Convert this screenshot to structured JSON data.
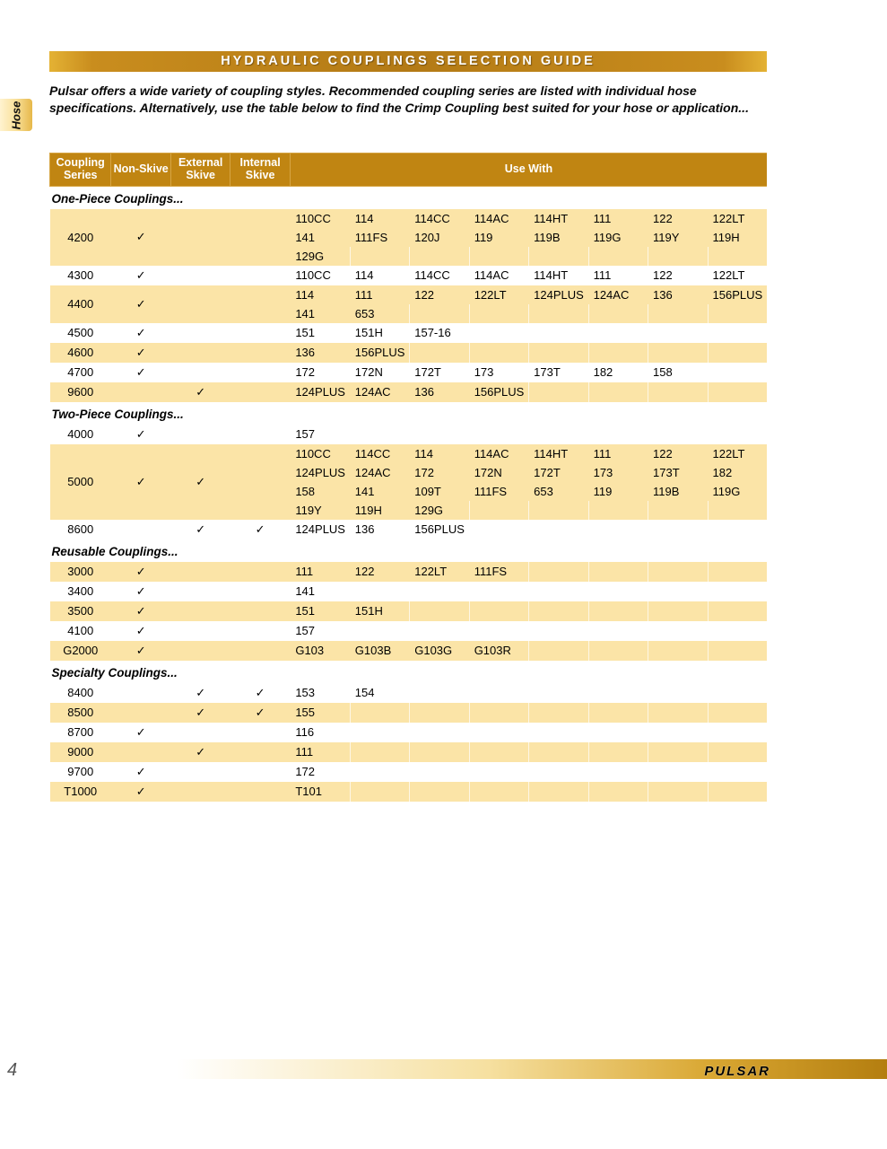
{
  "sideTab": "Hose",
  "title": "HYDRAULIC COUPLINGS SELECTION GUIDE",
  "intro": "Pulsar offers a wide variety of coupling styles. Recommended coupling series are listed with individual hose specifications. Alternatively, use the table below to find the Crimp Coupling best suited for your hose or application...",
  "columns": {
    "series": "Coupling Series",
    "nonSkive": "Non-Skive",
    "extSkive": "External Skive",
    "intSkive": "Internal Skive",
    "useWith": "Use With"
  },
  "checkGlyph": "✓",
  "useWithCols": 8,
  "sections": [
    {
      "label": "One-Piece Couplings...",
      "rows": [
        {
          "series": "4200",
          "non": true,
          "ext": false,
          "int": false,
          "use": [
            "110CC",
            "114",
            "114CC",
            "114AC",
            "114HT",
            "111",
            "122",
            "122LT",
            "141",
            "111FS",
            "120J",
            "119",
            "119B",
            "119G",
            "119Y",
            "119H",
            "129G"
          ]
        },
        {
          "series": "4300",
          "non": true,
          "ext": false,
          "int": false,
          "use": [
            "110CC",
            "114",
            "114CC",
            "114AC",
            "114HT",
            "111",
            "122",
            "122LT"
          ]
        },
        {
          "series": "4400",
          "non": true,
          "ext": false,
          "int": false,
          "use": [
            "114",
            "111",
            "122",
            "122LT",
            "124PLUS",
            "124AC",
            "136",
            "156PLUS",
            "141",
            "653"
          ]
        },
        {
          "series": "4500",
          "non": true,
          "ext": false,
          "int": false,
          "use": [
            "151",
            "151H",
            "157-16"
          ]
        },
        {
          "series": "4600",
          "non": true,
          "ext": false,
          "int": false,
          "use": [
            "136",
            "156PLUS"
          ]
        },
        {
          "series": "4700",
          "non": true,
          "ext": false,
          "int": false,
          "use": [
            "172",
            "172N",
            "172T",
            "173",
            "173T",
            "182",
            "158"
          ]
        },
        {
          "series": "9600",
          "non": false,
          "ext": true,
          "int": false,
          "use": [
            "124PLUS",
            "124AC",
            "136",
            "156PLUS"
          ]
        }
      ]
    },
    {
      "label": "Two-Piece Couplings...",
      "rows": [
        {
          "series": "4000",
          "non": true,
          "ext": false,
          "int": false,
          "use": [
            "157"
          ]
        },
        {
          "series": "5000",
          "non": true,
          "ext": true,
          "int": false,
          "use": [
            "110CC",
            "114CC",
            "114",
            "114AC",
            "114HT",
            "111",
            "122",
            "122LT",
            "124PLUS",
            "124AC",
            "172",
            "172N",
            "172T",
            "173",
            "173T",
            "182",
            "158",
            "141",
            "109T",
            "111FS",
            "653",
            "119",
            "119B",
            "119G",
            "119Y",
            "119H",
            "129G"
          ]
        },
        {
          "series": "8600",
          "non": false,
          "ext": true,
          "int": true,
          "use": [
            "124PLUS",
            "136",
            "156PLUS"
          ]
        }
      ]
    },
    {
      "label": "Reusable Couplings...",
      "rows": [
        {
          "series": "3000",
          "non": true,
          "ext": false,
          "int": false,
          "use": [
            "111",
            "122",
            "122LT",
            "111FS"
          ]
        },
        {
          "series": "3400",
          "non": true,
          "ext": false,
          "int": false,
          "use": [
            "141"
          ]
        },
        {
          "series": "3500",
          "non": true,
          "ext": false,
          "int": false,
          "use": [
            "151",
            "151H"
          ]
        },
        {
          "series": "4100",
          "non": true,
          "ext": false,
          "int": false,
          "use": [
            "157"
          ]
        },
        {
          "series": "G2000",
          "non": true,
          "ext": false,
          "int": false,
          "use": [
            "G103",
            "G103B",
            "G103G",
            "G103R"
          ]
        }
      ]
    },
    {
      "label": "Specialty Couplings...",
      "rows": [
        {
          "series": "8400",
          "non": false,
          "ext": true,
          "int": true,
          "use": [
            "153",
            "154"
          ]
        },
        {
          "series": "8500",
          "non": false,
          "ext": true,
          "int": true,
          "use": [
            "155"
          ]
        },
        {
          "series": "8700",
          "non": true,
          "ext": false,
          "int": false,
          "use": [
            "116"
          ]
        },
        {
          "series": "9000",
          "non": false,
          "ext": true,
          "int": false,
          "use": [
            "111"
          ]
        },
        {
          "series": "9700",
          "non": true,
          "ext": false,
          "int": false,
          "use": [
            "172"
          ]
        },
        {
          "series": "T1000",
          "non": true,
          "ext": false,
          "int": false,
          "use": [
            "T101"
          ]
        }
      ]
    }
  ],
  "pageNumber": "4",
  "brand": "PULSAR",
  "colors": {
    "headerBg": "#c08512",
    "tint": "#fbe4a7",
    "titleGradStart": "#e4b234",
    "titleGradMid": "#b37a15"
  }
}
